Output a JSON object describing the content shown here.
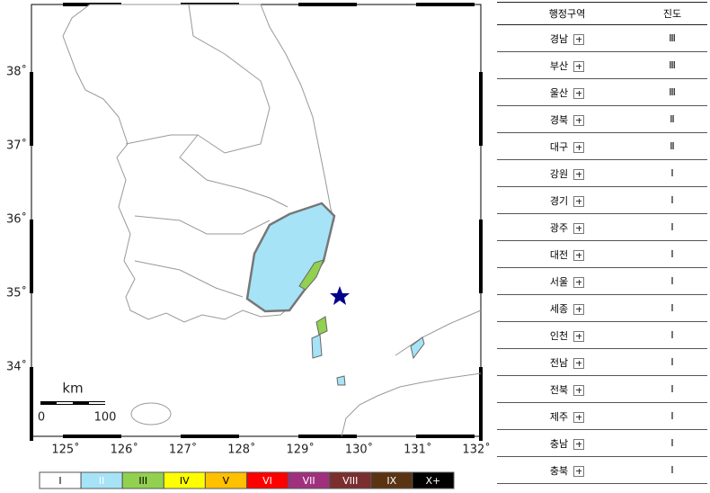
{
  "map": {
    "lat_labels": [
      "38˚",
      "37˚",
      "36˚",
      "35˚",
      "34˚"
    ],
    "lon_labels": [
      "125˚",
      "126˚",
      "127˚",
      "128˚",
      "129˚",
      "130˚",
      "131˚",
      "132˚"
    ],
    "scale": {
      "unit": "km",
      "start": "0",
      "end": "100"
    }
  },
  "legend": [
    {
      "label": "I",
      "color": "#ffffff",
      "text_color": "#000000"
    },
    {
      "label": "II",
      "color": "#a6e3f7",
      "text_color": "#ffffff"
    },
    {
      "label": "III",
      "color": "#92d050",
      "text_color": "#000000"
    },
    {
      "label": "IV",
      "color": "#ffff00",
      "text_color": "#000000"
    },
    {
      "label": "V",
      "color": "#ffc000",
      "text_color": "#000000"
    },
    {
      "label": "VI",
      "color": "#ff0000",
      "text_color": "#ffffff"
    },
    {
      "label": "VII",
      "color": "#a0307e",
      "text_color": "#ffffff"
    },
    {
      "label": "VIII",
      "color": "#7a2e2e",
      "text_color": "#ffffff"
    },
    {
      "label": "IX",
      "color": "#5a3412",
      "text_color": "#ffffff"
    },
    {
      "label": "X+",
      "color": "#000000",
      "text_color": "#ffffff"
    }
  ],
  "table": {
    "header": [
      "행정구역",
      "진도"
    ],
    "rows": [
      [
        "경남",
        "Ⅲ"
      ],
      [
        "부산",
        "Ⅲ"
      ],
      [
        "울산",
        "Ⅲ"
      ],
      [
        "경북",
        "Ⅱ"
      ],
      [
        "대구",
        "Ⅱ"
      ],
      [
        "강원",
        "Ⅰ"
      ],
      [
        "경기",
        "Ⅰ"
      ],
      [
        "광주",
        "Ⅰ"
      ],
      [
        "대전",
        "Ⅰ"
      ],
      [
        "서울",
        "Ⅰ"
      ],
      [
        "세종",
        "Ⅰ"
      ],
      [
        "인천",
        "Ⅰ"
      ],
      [
        "전남",
        "Ⅰ"
      ],
      [
        "전북",
        "Ⅰ"
      ],
      [
        "제주",
        "Ⅰ"
      ],
      [
        "충남",
        "Ⅰ"
      ],
      [
        "충북",
        "Ⅰ"
      ]
    ]
  }
}
